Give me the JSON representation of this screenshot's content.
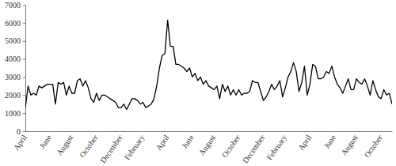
{
  "chart_data": {
    "type": "line",
    "color": "#000000",
    "grid": false,
    "categories": [
      "April",
      null,
      null,
      null,
      null,
      null,
      null,
      null,
      null,
      "June",
      null,
      null,
      null,
      null,
      null,
      null,
      null,
      "August",
      null,
      null,
      null,
      null,
      null,
      null,
      null,
      null,
      "October",
      null,
      null,
      null,
      null,
      null,
      null,
      null,
      null,
      "December",
      null,
      null,
      null,
      null,
      null,
      null,
      null,
      "February",
      null,
      null,
      null,
      null,
      null,
      null,
      null,
      null,
      "April",
      null,
      null,
      null,
      null,
      null,
      null,
      null,
      null,
      "June",
      null,
      null,
      null,
      null,
      null,
      null,
      null,
      "August",
      null,
      null,
      null,
      null,
      null,
      null,
      null,
      null,
      "October",
      null,
      null,
      null,
      null,
      null,
      null,
      null,
      null,
      "December",
      null,
      null,
      null,
      null,
      null,
      null,
      null,
      "February",
      null,
      null,
      null,
      null,
      null,
      null,
      null,
      null,
      "April",
      null,
      null,
      null,
      null,
      null,
      null,
      null,
      null,
      "June",
      null,
      null,
      null,
      null,
      null,
      null,
      null,
      "August",
      null,
      null,
      null,
      null,
      null,
      null,
      null,
      null,
      "October",
      null,
      null,
      null,
      null
    ],
    "values": [
      1300,
      2500,
      2000,
      2100,
      2000,
      2500,
      2400,
      2500,
      2600,
      2600,
      2600,
      1500,
      2700,
      2600,
      2700,
      2000,
      2500,
      2100,
      2100,
      2800,
      2900,
      2500,
      2800,
      2400,
      1800,
      1600,
      2100,
      1700,
      2000,
      2000,
      1900,
      1800,
      1700,
      1600,
      1300,
      1300,
      1500,
      1200,
      1500,
      1800,
      1800,
      1700,
      1500,
      1600,
      1300,
      1400,
      1500,
      1800,
      2500,
      3500,
      4200,
      4300,
      6150,
      4700,
      4700,
      3700,
      3700,
      3600,
      3500,
      3300,
      3500,
      3000,
      3200,
      2800,
      3000,
      2600,
      2800,
      2500,
      2400,
      2300,
      2500,
      1800,
      2600,
      2200,
      2500,
      2000,
      2300,
      2000,
      2300,
      2000,
      2100,
      2100,
      2200,
      2800,
      2700,
      2700,
      2200,
      1700,
      1900,
      2200,
      2600,
      2300,
      2500,
      2800,
      1900,
      2400,
      3000,
      3300,
      3800,
      3300,
      2200,
      2700,
      3600,
      2000,
      2600,
      3700,
      3600,
      2900,
      2900,
      3000,
      3300,
      3200,
      3600,
      3000,
      2600,
      2400,
      2100,
      2500,
      2900,
      2300,
      2300,
      2900,
      2700,
      2600,
      2900,
      2500,
      2000,
      2800,
      2300,
      1900,
      1800,
      2300,
      2000,
      2100,
      1500
    ],
    "ylim": [
      0,
      7000
    ],
    "yticks": [
      0,
      1000,
      2000,
      3000,
      4000,
      5000,
      6000,
      7000
    ]
  }
}
